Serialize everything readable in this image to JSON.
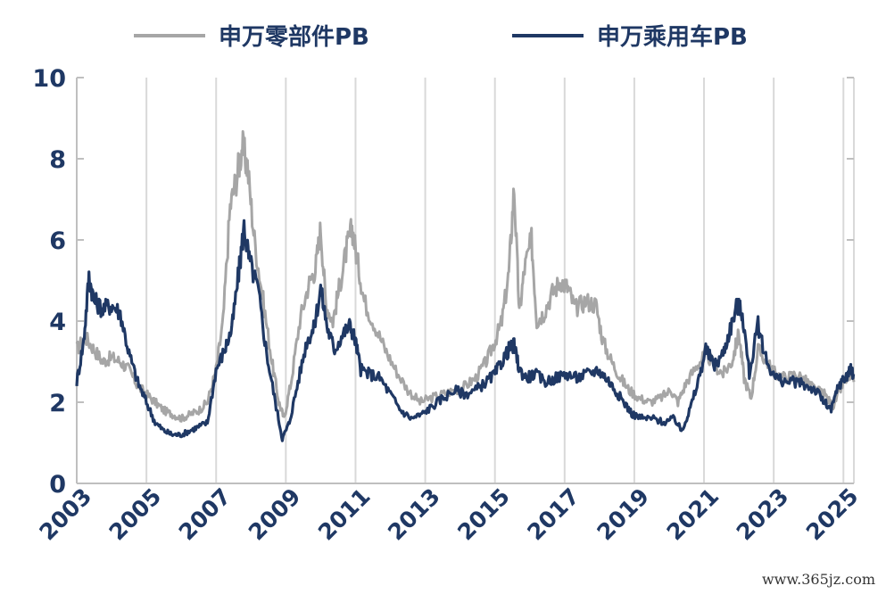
{
  "chart_data": {
    "type": "line",
    "title": "",
    "xlabel": "",
    "ylabel": "",
    "xlim": [
      2003.0,
      2025.3
    ],
    "ylim": [
      0,
      10
    ],
    "yticks": [
      "0",
      "2",
      "4",
      "6",
      "8",
      "10"
    ],
    "xticks": [
      "2003",
      "2005",
      "2007",
      "2009",
      "2011",
      "2013",
      "2015",
      "2017",
      "2019",
      "2021",
      "2023",
      "2025"
    ],
    "grid": "vertical",
    "legend_position": "top",
    "series": [
      {
        "name": "申万零部件PB",
        "color": "#a6a6a6",
        "points": [
          [
            2003.0,
            3.3
          ],
          [
            2003.25,
            3.6
          ],
          [
            2003.5,
            3.3
          ],
          [
            2003.75,
            3.0
          ],
          [
            2004.0,
            3.1
          ],
          [
            2004.25,
            3.0
          ],
          [
            2004.5,
            2.8
          ],
          [
            2004.75,
            2.4
          ],
          [
            2005.0,
            2.2
          ],
          [
            2005.25,
            2.0
          ],
          [
            2005.5,
            1.8
          ],
          [
            2005.75,
            1.7
          ],
          [
            2006.0,
            1.6
          ],
          [
            2006.25,
            1.7
          ],
          [
            2006.5,
            1.8
          ],
          [
            2006.75,
            2.0
          ],
          [
            2007.0,
            2.8
          ],
          [
            2007.2,
            4.0
          ],
          [
            2007.4,
            6.8
          ],
          [
            2007.6,
            7.6
          ],
          [
            2007.75,
            8.3
          ],
          [
            2007.9,
            7.8
          ],
          [
            2008.1,
            6.0
          ],
          [
            2008.35,
            4.5
          ],
          [
            2008.6,
            3.0
          ],
          [
            2008.8,
            2.0
          ],
          [
            2008.95,
            1.6
          ],
          [
            2009.15,
            2.5
          ],
          [
            2009.4,
            4.0
          ],
          [
            2009.65,
            4.9
          ],
          [
            2009.85,
            5.3
          ],
          [
            2010.0,
            6.3
          ],
          [
            2010.15,
            4.4
          ],
          [
            2010.35,
            4.0
          ],
          [
            2010.55,
            4.9
          ],
          [
            2010.75,
            5.8
          ],
          [
            2010.9,
            6.3
          ],
          [
            2011.05,
            5.5
          ],
          [
            2011.25,
            4.5
          ],
          [
            2011.55,
            3.9
          ],
          [
            2011.85,
            3.3
          ],
          [
            2012.15,
            2.8
          ],
          [
            2012.5,
            2.3
          ],
          [
            2012.85,
            2.0
          ],
          [
            2013.15,
            2.1
          ],
          [
            2013.5,
            2.2
          ],
          [
            2013.85,
            2.3
          ],
          [
            2014.15,
            2.4
          ],
          [
            2014.45,
            2.6
          ],
          [
            2014.75,
            3.0
          ],
          [
            2015.0,
            3.5
          ],
          [
            2015.2,
            4.0
          ],
          [
            2015.4,
            5.2
          ],
          [
            2015.55,
            7.3
          ],
          [
            2015.7,
            4.2
          ],
          [
            2015.85,
            5.3
          ],
          [
            2016.05,
            6.0
          ],
          [
            2016.2,
            4.0
          ],
          [
            2016.4,
            4.2
          ],
          [
            2016.65,
            4.7
          ],
          [
            2016.9,
            5.0
          ],
          [
            2017.1,
            4.8
          ],
          [
            2017.3,
            4.3
          ],
          [
            2017.6,
            4.5
          ],
          [
            2017.9,
            4.4
          ],
          [
            2018.1,
            3.5
          ],
          [
            2018.35,
            3.0
          ],
          [
            2018.6,
            2.6
          ],
          [
            2018.85,
            2.3
          ],
          [
            2019.15,
            2.1
          ],
          [
            2019.45,
            2.0
          ],
          [
            2019.75,
            2.1
          ],
          [
            2020.05,
            2.3
          ],
          [
            2020.25,
            2.0
          ],
          [
            2020.5,
            2.5
          ],
          [
            2020.8,
            2.9
          ],
          [
            2021.05,
            3.2
          ],
          [
            2021.3,
            2.9
          ],
          [
            2021.55,
            2.7
          ],
          [
            2021.8,
            3.0
          ],
          [
            2022.0,
            3.7
          ],
          [
            2022.15,
            2.6
          ],
          [
            2022.35,
            2.1
          ],
          [
            2022.55,
            3.3
          ],
          [
            2022.8,
            3.0
          ],
          [
            2023.05,
            2.7
          ],
          [
            2023.35,
            2.6
          ],
          [
            2023.65,
            2.7
          ],
          [
            2023.95,
            2.5
          ],
          [
            2024.2,
            2.3
          ],
          [
            2024.45,
            2.2
          ],
          [
            2024.7,
            1.9
          ],
          [
            2024.9,
            2.3
          ],
          [
            2025.1,
            2.6
          ],
          [
            2025.3,
            2.5
          ]
        ]
      },
      {
        "name": "申万乘用车PB",
        "color": "#1f3864",
        "points": [
          [
            2003.0,
            2.5
          ],
          [
            2003.2,
            3.5
          ],
          [
            2003.35,
            5.1
          ],
          [
            2003.5,
            4.5
          ],
          [
            2003.75,
            4.3
          ],
          [
            2004.0,
            4.4
          ],
          [
            2004.25,
            4.2
          ],
          [
            2004.5,
            3.2
          ],
          [
            2004.75,
            2.5
          ],
          [
            2005.0,
            2.0
          ],
          [
            2005.25,
            1.5
          ],
          [
            2005.5,
            1.3
          ],
          [
            2005.75,
            1.2
          ],
          [
            2006.0,
            1.2
          ],
          [
            2006.25,
            1.3
          ],
          [
            2006.5,
            1.4
          ],
          [
            2006.75,
            1.5
          ],
          [
            2007.0,
            2.8
          ],
          [
            2007.25,
            3.3
          ],
          [
            2007.45,
            3.8
          ],
          [
            2007.65,
            5.2
          ],
          [
            2007.8,
            6.3
          ],
          [
            2007.95,
            5.5
          ],
          [
            2008.2,
            4.8
          ],
          [
            2008.45,
            3.2
          ],
          [
            2008.7,
            2.0
          ],
          [
            2008.9,
            1.1
          ],
          [
            2009.1,
            1.5
          ],
          [
            2009.35,
            2.5
          ],
          [
            2009.6,
            3.5
          ],
          [
            2009.8,
            3.8
          ],
          [
            2010.0,
            4.8
          ],
          [
            2010.2,
            3.8
          ],
          [
            2010.4,
            3.3
          ],
          [
            2010.65,
            3.7
          ],
          [
            2010.85,
            3.9
          ],
          [
            2011.0,
            3.5
          ],
          [
            2011.15,
            2.8
          ],
          [
            2011.4,
            2.7
          ],
          [
            2011.7,
            2.6
          ],
          [
            2012.0,
            2.2
          ],
          [
            2012.3,
            1.8
          ],
          [
            2012.6,
            1.6
          ],
          [
            2012.9,
            1.7
          ],
          [
            2013.2,
            1.9
          ],
          [
            2013.5,
            2.1
          ],
          [
            2013.85,
            2.3
          ],
          [
            2014.15,
            2.2
          ],
          [
            2014.45,
            2.3
          ],
          [
            2014.75,
            2.5
          ],
          [
            2015.0,
            2.7
          ],
          [
            2015.2,
            3.0
          ],
          [
            2015.4,
            3.3
          ],
          [
            2015.55,
            3.4
          ],
          [
            2015.7,
            2.8
          ],
          [
            2015.9,
            2.6
          ],
          [
            2016.15,
            2.7
          ],
          [
            2016.45,
            2.5
          ],
          [
            2016.75,
            2.6
          ],
          [
            2017.05,
            2.7
          ],
          [
            2017.35,
            2.6
          ],
          [
            2017.65,
            2.7
          ],
          [
            2017.95,
            2.8
          ],
          [
            2018.2,
            2.6
          ],
          [
            2018.45,
            2.3
          ],
          [
            2018.7,
            2.0
          ],
          [
            2018.95,
            1.7
          ],
          [
            2019.25,
            1.6
          ],
          [
            2019.55,
            1.6
          ],
          [
            2019.85,
            1.5
          ],
          [
            2020.15,
            1.6
          ],
          [
            2020.35,
            1.3
          ],
          [
            2020.55,
            1.7
          ],
          [
            2020.8,
            2.4
          ],
          [
            2021.05,
            3.3
          ],
          [
            2021.3,
            2.9
          ],
          [
            2021.55,
            3.2
          ],
          [
            2021.75,
            3.8
          ],
          [
            2021.95,
            4.4
          ],
          [
            2022.1,
            4.2
          ],
          [
            2022.3,
            2.7
          ],
          [
            2022.55,
            3.9
          ],
          [
            2022.8,
            3.0
          ],
          [
            2023.05,
            2.6
          ],
          [
            2023.35,
            2.5
          ],
          [
            2023.65,
            2.5
          ],
          [
            2023.95,
            2.4
          ],
          [
            2024.2,
            2.3
          ],
          [
            2024.45,
            2.0
          ],
          [
            2024.65,
            1.8
          ],
          [
            2024.85,
            2.4
          ],
          [
            2025.05,
            2.6
          ],
          [
            2025.2,
            2.8
          ],
          [
            2025.3,
            2.7
          ]
        ]
      }
    ]
  },
  "watermark": "www.365jz.com"
}
